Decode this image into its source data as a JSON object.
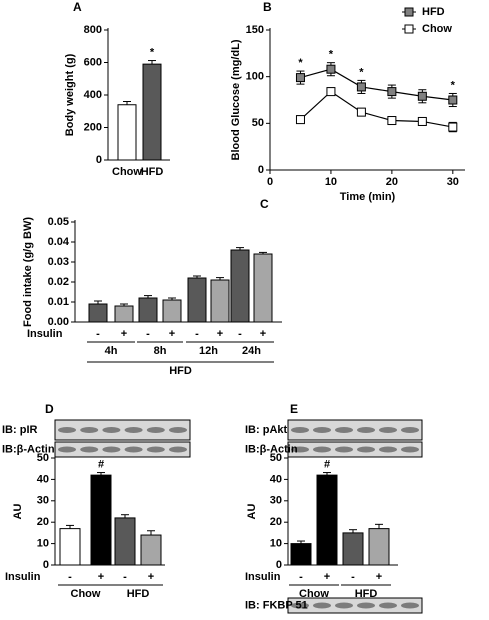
{
  "chart_data": [
    {
      "type": "bar",
      "label": "A",
      "ylabel": "Body weight (g)",
      "categories": [
        "Chow",
        "HFD"
      ],
      "values": [
        340,
        590
      ],
      "errors": [
        20,
        22
      ],
      "colors": [
        "#ffffff",
        "#595959"
      ],
      "annotations": [
        null,
        "*"
      ],
      "ylim": [
        0,
        800
      ],
      "yticks": [
        0,
        200,
        400,
        600,
        800
      ]
    },
    {
      "type": "line",
      "label": "B",
      "xlabel": "Time (min)",
      "ylabel": "Blood Glucose (mg/dL)",
      "x": [
        5,
        10,
        15,
        20,
        25,
        30
      ],
      "series": [
        {
          "name": "HFD",
          "color": "#808080",
          "values": [
            99,
            108,
            89,
            84,
            79,
            75
          ],
          "errors": [
            7,
            7,
            7,
            7,
            7,
            7
          ],
          "annotations": [
            "*",
            "*",
            "*",
            null,
            null,
            "*"
          ]
        },
        {
          "name": "Chow",
          "color": "#ffffff",
          "values": [
            54,
            84,
            62,
            53,
            52,
            46
          ],
          "errors": [
            4,
            4,
            4,
            4,
            4,
            5
          ]
        }
      ],
      "xlim": [
        0,
        32
      ],
      "xticks": [
        0,
        10,
        20,
        30
      ],
      "ylim": [
        0,
        150
      ],
      "yticks": [
        0,
        50,
        100,
        150
      ],
      "legend": "upper right"
    },
    {
      "type": "bar",
      "label": "C",
      "ylabel": "Food intake (g/g BW)",
      "row_label": "Insulin",
      "categories": [
        "-",
        "+",
        "-",
        "+",
        "-",
        "+",
        "-",
        "+"
      ],
      "values": [
        0.009,
        0.008,
        0.012,
        0.011,
        0.022,
        0.021,
        0.036,
        0.034
      ],
      "errors": [
        0.0015,
        0.001,
        0.0012,
        0.001,
        0.001,
        0.0012,
        0.0012,
        0.0008
      ],
      "colors": [
        "#595959",
        "#a6a6a6",
        "#595959",
        "#a6a6a6",
        "#595959",
        "#a6a6a6",
        "#595959",
        "#a6a6a6"
      ],
      "groups": [
        "4h",
        "8h",
        "12h",
        "24h"
      ],
      "group_label": "HFD",
      "ylim": [
        0,
        0.05
      ],
      "yticks": [
        {
          "value": 0,
          "label": "0.00"
        },
        0.01,
        0.02,
        0.03,
        0.04,
        0.05
      ]
    },
    {
      "type": "bar",
      "label": "D",
      "ylabel": "AU",
      "row_label": "Insulin",
      "blots": [
        "IB: pIR",
        "IB:β-Actin"
      ],
      "categories": [
        "-",
        "+",
        "-",
        "+"
      ],
      "values": [
        17,
        42,
        22,
        14
      ],
      "errors": [
        1.5,
        1.2,
        1.5,
        2
      ],
      "colors": [
        "#ffffff",
        "#000000",
        "#595959",
        "#a6a6a6"
      ],
      "annotations": [
        null,
        "#",
        null,
        null
      ],
      "groups": [
        "Chow",
        "HFD"
      ],
      "ylim": [
        0,
        50
      ],
      "yticks": [
        0,
        10,
        20,
        30,
        40,
        50
      ]
    },
    {
      "type": "bar",
      "label": "E",
      "ylabel": "AU",
      "row_label": "Insulin",
      "blots": [
        "IB: pAkt",
        "IB:β-Actin",
        "IB: FKBP 51"
      ],
      "categories": [
        "-",
        "+",
        "-",
        "+"
      ],
      "values": [
        10,
        42,
        15,
        17
      ],
      "errors": [
        1.2,
        1.2,
        1.5,
        2
      ],
      "colors": [
        "#000000",
        "#000000",
        "#595959",
        "#a6a6a6"
      ],
      "annotations": [
        null,
        "#",
        null,
        null
      ],
      "groups": [
        "Chow",
        "HFD"
      ],
      "ylim": [
        0,
        50
      ],
      "yticks": [
        0,
        10,
        20,
        30,
        40,
        50
      ]
    }
  ]
}
